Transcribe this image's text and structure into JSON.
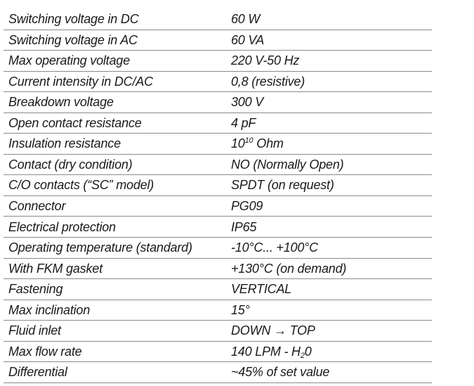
{
  "table": {
    "rows": [
      [
        "Switching voltage in DC",
        "60 W"
      ],
      [
        "Switching voltage in AC",
        "60 VA"
      ],
      [
        "Max operating voltage",
        "220 V-50 Hz"
      ],
      [
        "Current intensity in DC/AC",
        "0,8 (resistive)"
      ],
      [
        "Breakdown voltage",
        "300 V"
      ],
      [
        "Open contact resistance",
        "4 pF"
      ],
      [
        "Insulation resistance",
        {
          "base": "10",
          "sup": "10",
          "rest": " Ohm"
        }
      ],
      [
        "Contact (dry condition)",
        "NO (Normally Open)"
      ],
      [
        "C/O contacts (“SC” model)",
        "SPDT (on request)"
      ],
      [
        "Connector",
        "PG09"
      ],
      [
        "Electrical protection",
        "IP65"
      ],
      [
        "Operating temperature (standard)",
        "-10°C... +100°C"
      ],
      [
        "With FKM gasket",
        "+130°C (on demand)"
      ],
      [
        "Fastening",
        "VERTICAL"
      ],
      [
        "Max inclination",
        "15°"
      ],
      [
        "Fluid inlet",
        "DOWN → TOP"
      ],
      [
        "Max flow rate",
        {
          "base": "140 LPM - H",
          "sub": "2",
          "rest": "0"
        }
      ],
      [
        "Differential",
        "~45% of set value"
      ]
    ]
  }
}
